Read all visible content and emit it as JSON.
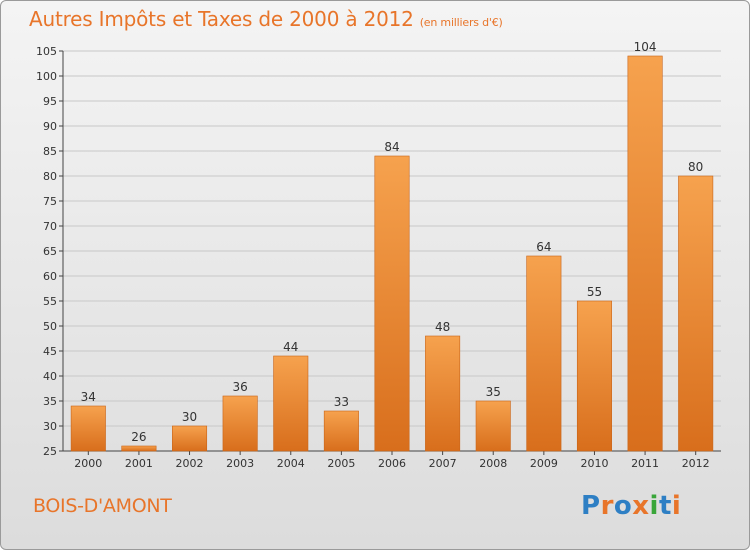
{
  "title": "Autres Impôts et Taxes de 2000 à 2012",
  "unit_note": "(en milliers d'€)",
  "commune": "BOIS-D'AMONT",
  "logo": {
    "text": "Proxiti",
    "letter_colors": [
      "#2e7fc4",
      "#e8752a",
      "#2e7fc4",
      "#e8752a",
      "#3aa63a",
      "#2e7fc4",
      "#e8752a"
    ]
  },
  "colors": {
    "bar_top": "#f6a24e",
    "bar_bottom": "#d86e1c",
    "title": "#e8752a",
    "grid": "#c8c8c8",
    "axis": "#444444"
  },
  "chart_data": {
    "type": "bar",
    "categories": [
      "2000",
      "2001",
      "2002",
      "2003",
      "2004",
      "2005",
      "2006",
      "2007",
      "2008",
      "2009",
      "2010",
      "2011",
      "2012"
    ],
    "values": [
      34,
      26,
      30,
      36,
      44,
      33,
      84,
      48,
      35,
      64,
      55,
      104,
      80
    ],
    "ylim": [
      25,
      105
    ],
    "yticks": [
      25,
      30,
      35,
      40,
      45,
      50,
      55,
      60,
      65,
      70,
      75,
      80,
      85,
      90,
      95,
      100,
      105
    ],
    "grid": true
  }
}
